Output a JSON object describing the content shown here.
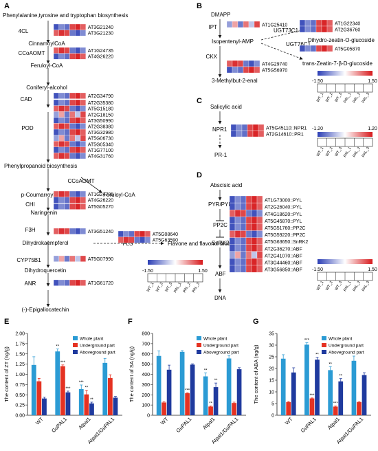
{
  "panels": {
    "A": {
      "letter": "A",
      "title": "Phenylalanine,tyrosine and tryptophan biosynthesis",
      "pathway_nodes": [
        "CinnamoylCoA",
        "Feruloyl-CoA",
        "Coniferyl-alcohol",
        "Phenylpropanoid biosynthesis",
        "p-Coumarroyl-CoA",
        "Naringenin",
        "Dihydrokaempferol",
        "Dihydroquercetin",
        "(-)-Epigallocatechin"
      ],
      "branch_products": [
        "Feruloyl-CoA",
        "Flavone and flavonol biosynthesis"
      ],
      "enzymes": [
        "4CL",
        "CCoAOMT",
        "CAD",
        "POD",
        "CCoAOMT",
        "CHI",
        "F3H",
        "FLS",
        "CYP75B1",
        "ANR"
      ],
      "gene_groups": [
        [
          "AT3G21240",
          "AT3G21230"
        ],
        [
          "AT1G24735",
          "AT4G26220"
        ],
        [
          "AT2G34790"
        ],
        [
          "AT2G35380",
          "AT5G15180",
          "AT2G18150",
          "AT3G50990",
          "AT2G38380",
          "AT3G32980",
          "AT5G06730",
          "AT5G05340",
          "AT1G77100",
          "AT4G31760"
        ],
        [
          "AT1G24735",
          "AT4G26220"
        ],
        [
          "AT5G05270"
        ],
        [
          "AT3G51240"
        ],
        [
          "AT5G08640",
          "AT5G63590"
        ],
        [
          "AT5G07990"
        ],
        [
          "AT1G61720"
        ]
      ],
      "legend_min": "-1.50",
      "legend_max": "1.50",
      "samples": [
        "WT_1",
        "WT_2",
        "WT_3",
        "PAL_1",
        "PAL_2",
        "PAL_3"
      ]
    },
    "B": {
      "letter": "B",
      "compounds": [
        "DMAPP",
        "Isopentenyl-AMP",
        "3-Methylbut-2-enal",
        "Dihydro-zeatin-O-glucoside",
        "trans-Zeatin-7-β-D-glucoside"
      ],
      "enzymes": [
        "IPT",
        "CKX",
        "UGT73C1",
        "UGT76C1"
      ],
      "gene_groups": [
        [
          "AT1G25410"
        ],
        [
          "AT4G29740",
          "AT5G56970"
        ],
        [
          "AT1G22340",
          "AT2G36760"
        ],
        [
          "AT5G05870"
        ]
      ],
      "legend_min": "-1.50",
      "legend_max": "1.50",
      "samples": [
        "WT_1",
        "WT_2",
        "WT_3",
        "PAL_1",
        "PAL_2",
        "PAL_3"
      ]
    },
    "C": {
      "letter": "C",
      "compounds": [
        "Salicylic acid",
        "NPR1",
        "PR-1"
      ],
      "genes": [
        "AT5G45110::NPR1",
        "AT2G14610::PR1"
      ],
      "legend_min": "-1.20",
      "legend_max": "1.20",
      "samples": [
        "WT_1",
        "WT_2",
        "WT_3",
        "PAL_1",
        "PAL_2",
        "PAL_3"
      ]
    },
    "D": {
      "letter": "D",
      "compounds": [
        "Abscisic acid",
        "PYR/PYL",
        "PP2C",
        "SnRK2",
        "ABF",
        "DNA"
      ],
      "genes": [
        "AT1G73000::PYL",
        "AT2G26040::PYL",
        "AT4G18620::PYL",
        "AT5G45870::PYL",
        "AT5G51760::PP2C",
        "AT5G59220::PP2C",
        "AT5G63650::SnRK2",
        "AT2G36270::ABF",
        "AT2G41070::ABF",
        "AT3G44460::ABF",
        "AT3G56850::ABF"
      ],
      "legend_min": "-1.50",
      "legend_max": "1.50",
      "samples": [
        "WT_1",
        "WT_2",
        "WT_3",
        "PAL_1",
        "PAL_2",
        "PAL_3"
      ]
    }
  },
  "colors": {
    "low": "#2c3fb5",
    "mid": "#ffffff",
    "high": "#d7191c",
    "whole": "#2b9bd4",
    "under": "#e53222",
    "above": "#1f3a9e"
  },
  "chart_data": [
    {
      "panel": "E",
      "type": "bar",
      "ylabel": "The content of ZT (ng/g)",
      "ylim": [
        0,
        2.0
      ],
      "yticks": [
        "0.00",
        "0.25",
        "0.50",
        "0.75",
        "1.00",
        "1.25",
        "1.50",
        "1.75",
        "2.00"
      ],
      "categories": [
        "WT",
        "GuPAL1",
        "Atpal1",
        "Atpal1/GuPAL1"
      ],
      "legend": "top-right",
      "series": [
        {
          "name": "Whole plant",
          "values": [
            1.23,
            1.56,
            0.64,
            1.28
          ],
          "errors": [
            0.2,
            0.06,
            0.1,
            0.11
          ]
        },
        {
          "name": "Underground part",
          "values": [
            0.83,
            1.2,
            0.51,
            0.91
          ],
          "errors": [
            0.07,
            0.03,
            0.1,
            0.08
          ]
        },
        {
          "name": "Aboveground part",
          "values": [
            0.41,
            0.56,
            0.29,
            0.43
          ],
          "errors": [
            0.03,
            0.03,
            0.03,
            0.03
          ]
        }
      ],
      "significance": [
        [
          "",
          "**",
          "***",
          ""
        ],
        [
          "",
          "***",
          "**",
          ""
        ],
        [
          "",
          "***",
          "**",
          ""
        ]
      ]
    },
    {
      "panel": "F",
      "type": "bar",
      "ylabel": "The content of SA (ng/g)",
      "ylim": [
        0,
        800
      ],
      "yticks": [
        "0",
        "100",
        "200",
        "300",
        "400",
        "500",
        "600",
        "700",
        "800"
      ],
      "categories": [
        "WT",
        "GuPAL1",
        "Atpal1",
        "Atpal1/GuPAL1"
      ],
      "legend": "top-right",
      "series": [
        {
          "name": "Whole plant",
          "values": [
            580,
            620,
            380,
            555
          ],
          "errors": [
            50,
            12,
            35,
            30
          ]
        },
        {
          "name": "Underground part",
          "values": [
            125,
            215,
            85,
            120
          ],
          "errors": [
            8,
            5,
            6,
            8
          ]
        },
        {
          "name": "Aboveground part",
          "values": [
            445,
            495,
            275,
            450
          ],
          "errors": [
            45,
            8,
            40,
            15
          ]
        }
      ],
      "significance": [
        [
          "",
          "",
          "**",
          ""
        ],
        [
          "",
          "***",
          "**",
          ""
        ],
        [
          "",
          "",
          "**",
          ""
        ]
      ]
    },
    {
      "panel": "G",
      "type": "bar",
      "ylabel": "The content of ABA (ng/g)",
      "ylim": [
        0,
        35
      ],
      "yticks": [
        "0",
        "5",
        "10",
        "15",
        "20",
        "25",
        "30",
        "35"
      ],
      "categories": [
        "WT",
        "GuPAL1",
        "Atpal1",
        "Atpal1/GuPAL1"
      ],
      "legend": "top-right",
      "series": [
        {
          "name": "Whole plant",
          "values": [
            24.2,
            30.2,
            19.3,
            23.3
          ],
          "errors": [
            1.7,
            0.8,
            1.5,
            2.0
          ]
        },
        {
          "name": "Underground part",
          "values": [
            5.6,
            7.2,
            3.7,
            5.6
          ],
          "errors": [
            0.3,
            0.2,
            0.3,
            0.3
          ]
        },
        {
          "name": "Aboveground part",
          "values": [
            18.3,
            23.8,
            14.5,
            17.2
          ],
          "errors": [
            2.0,
            1.0,
            1.2,
            1.0
          ]
        }
      ],
      "significance": [
        [
          "",
          "***",
          "**",
          ""
        ],
        [
          "",
          "***",
          "***",
          ""
        ],
        [
          "",
          "**",
          "**",
          ""
        ]
      ]
    }
  ]
}
